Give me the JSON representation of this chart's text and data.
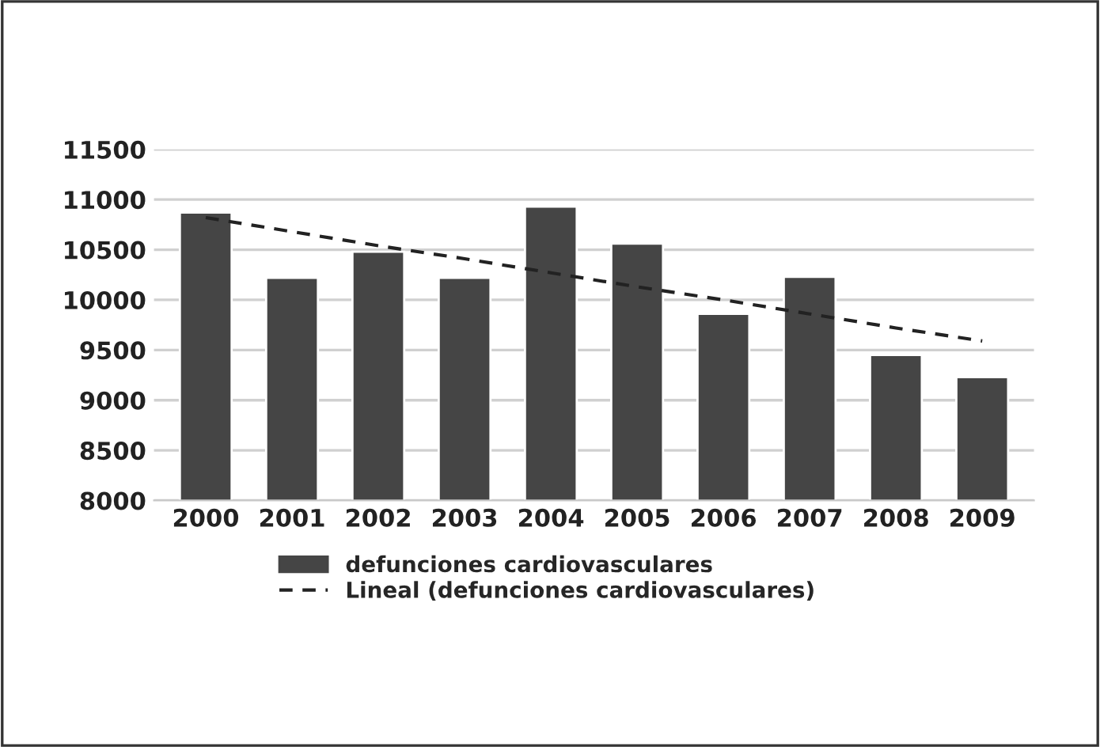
{
  "chart_data": {
    "type": "bar",
    "categories": [
      "2000",
      "2001",
      "2002",
      "2003",
      "2004",
      "2005",
      "2006",
      "2007",
      "2008",
      "2009"
    ],
    "series": [
      {
        "name": "defunciones cardiovasculares",
        "color": "#454545",
        "values": [
          10870,
          10220,
          10480,
          10220,
          10930,
          10560,
          9860,
          10230,
          9450,
          9230
        ]
      },
      {
        "name": "Lineal (defunciones cardiovasculares)",
        "type": "line",
        "color": "#222222",
        "line_style": "dashed",
        "values": [
          10820,
          10680,
          10540,
          10410,
          10270,
          10130,
          10000,
          9860,
          9720,
          9590
        ]
      }
    ],
    "ylim": [
      8000,
      11500
    ],
    "yticks": [
      8000,
      8500,
      9000,
      9500,
      10000,
      10500,
      11000,
      11500
    ],
    "grid": "y",
    "legend": "bottom"
  }
}
